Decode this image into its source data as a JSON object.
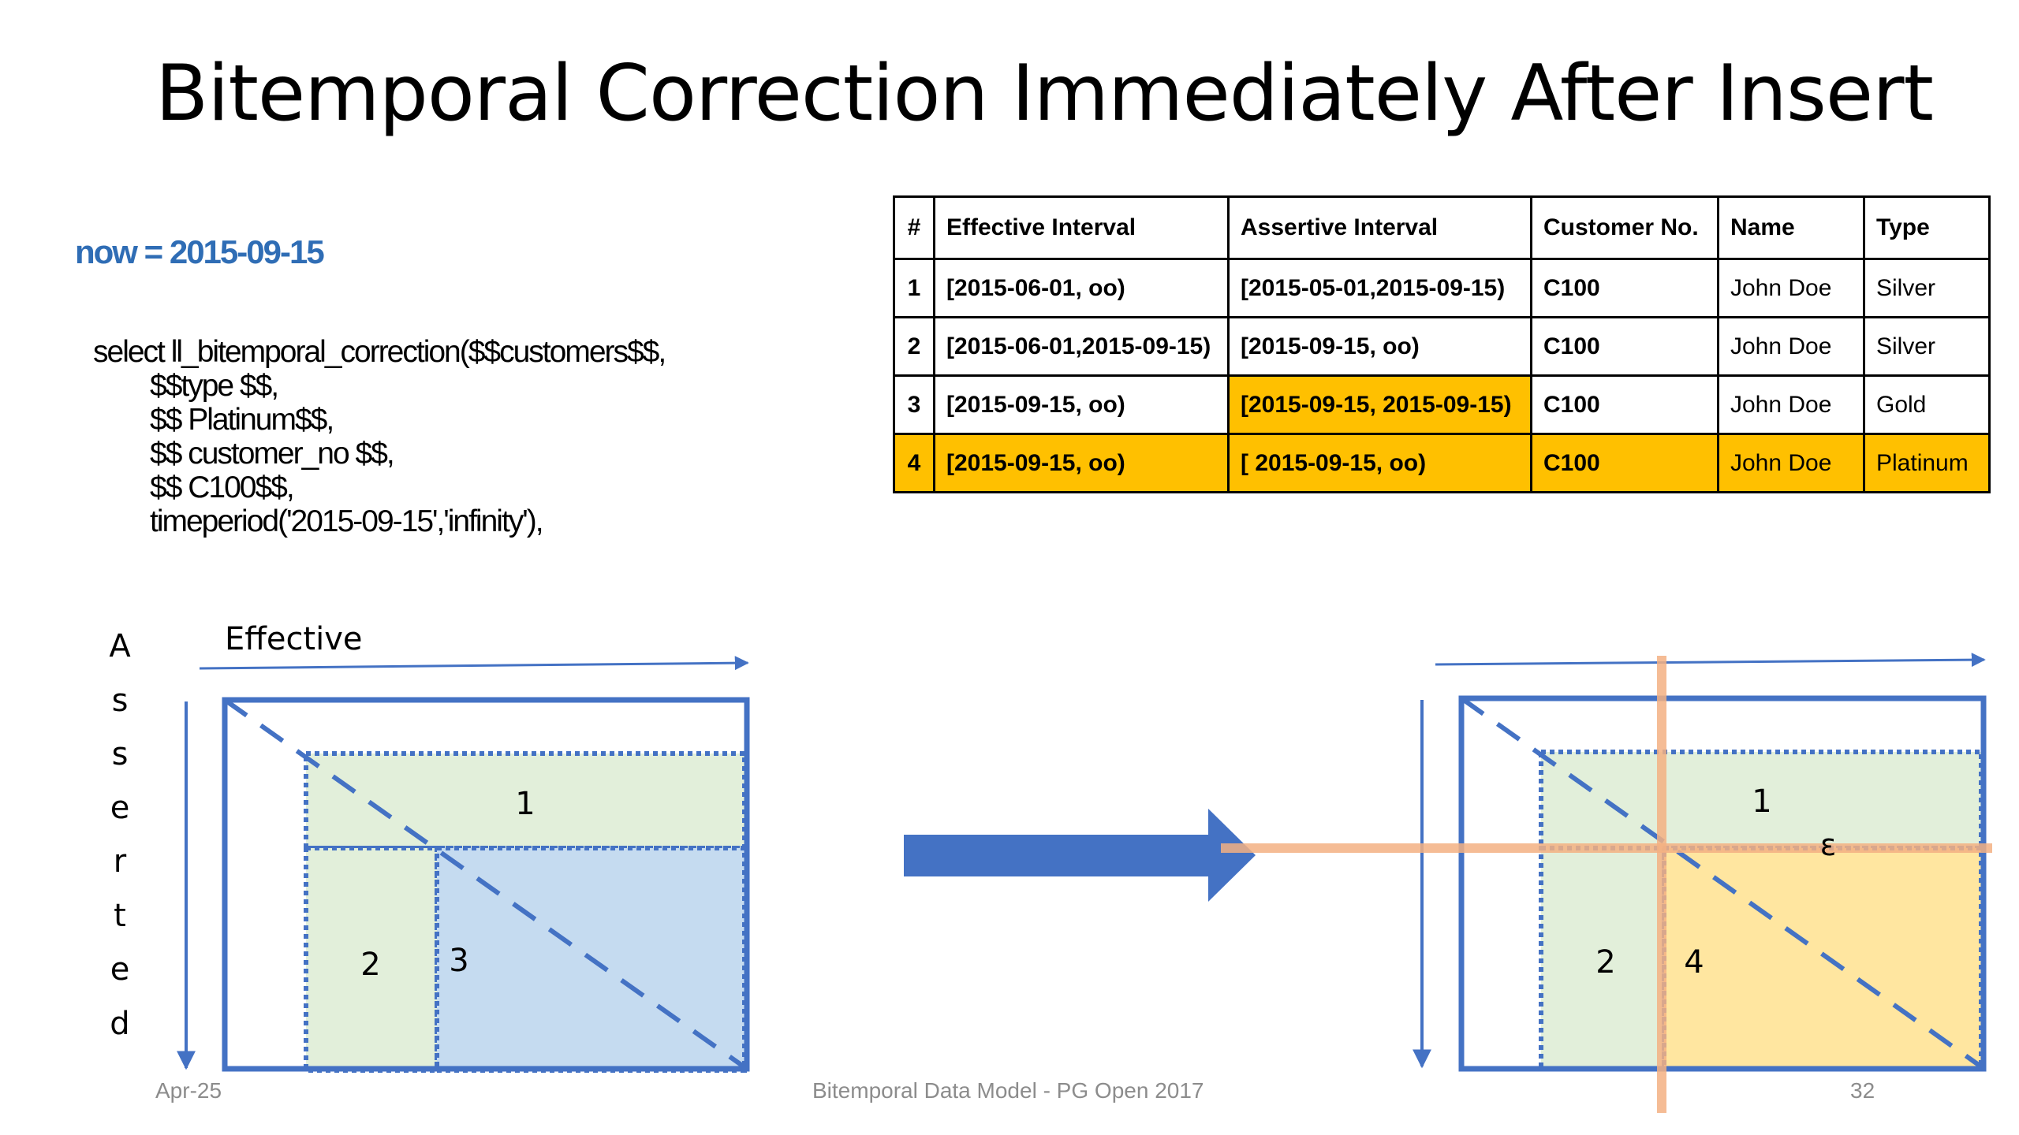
{
  "title": "Bitemporal Correction Immediately After Insert",
  "now_label": "now = 2015-09-15",
  "sql_lines": [
    "select ll_bitemporal_correction($$customers$$,",
    "$$type $$,",
    "$$ Platinum$$,",
    "$$ customer_no $$,",
    "$$ C100$$,",
    "timeperiod('2015-09-15','infinity'),"
  ],
  "table": {
    "headers": [
      "#",
      "Effective Interval",
      "Assertive Interval",
      "Customer No.",
      "Name",
      "Type"
    ],
    "rows": [
      [
        "1",
        "[2015-06-01, oo)",
        "[2015-05-01,2015-09-15)",
        "C100",
        "John Doe",
        "Silver"
      ],
      [
        "2",
        "[2015-06-01,2015-09-15)",
        "[2015-09-15, oo)",
        "C100",
        "John Doe",
        "Silver"
      ],
      [
        "3",
        "[2015-09-15, oo)",
        "[2015-09-15, 2015-09-15)",
        "C100",
        "John Doe",
        "Gold"
      ],
      [
        "4",
        "[2015-09-15, oo)",
        "[ 2015-09-15, oo)",
        "C100",
        "John Doe",
        "Platinum"
      ]
    ],
    "highlight_color": "#ffc000"
  },
  "left_diagram": {
    "x_axis_label": "Effective",
    "y_axis_letters": [
      "A",
      "s",
      "s",
      "e",
      "r",
      "t",
      "e",
      "d"
    ],
    "region_labels": [
      "1",
      "2",
      "3"
    ]
  },
  "right_diagram": {
    "region_labels": [
      "1",
      "2",
      "4"
    ],
    "stray_mark": "ε"
  },
  "footer": {
    "date": "Apr-25",
    "center": "Bitemporal Data Model - PG Open 2017",
    "page": "32"
  },
  "colors": {
    "accent_blue": "#4472c4",
    "green_fill": "#e2efda",
    "blue_fill": "#c5dbf0",
    "yellow_fill": "#ffe6a0",
    "salmon_line": "#f4b183"
  }
}
